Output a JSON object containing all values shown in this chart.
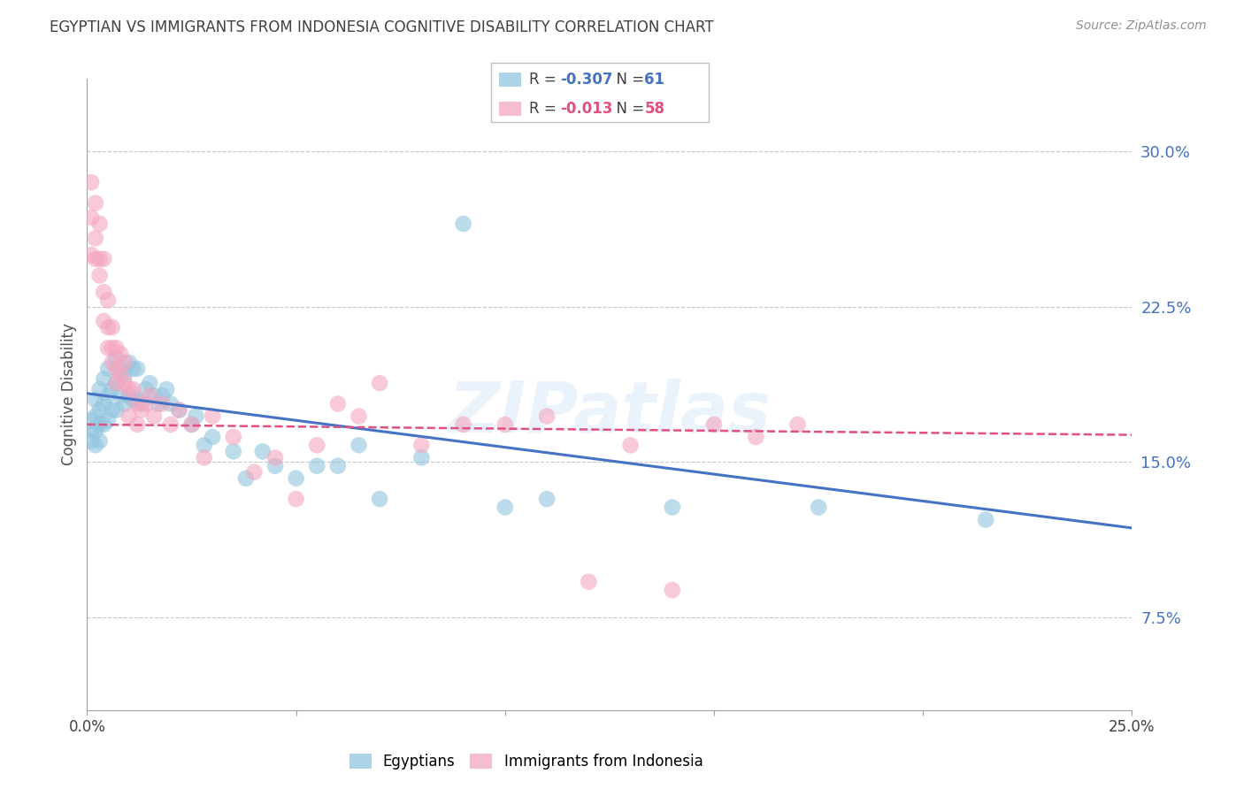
{
  "title": "EGYPTIAN VS IMMIGRANTS FROM INDONESIA COGNITIVE DISABILITY CORRELATION CHART",
  "source": "Source: ZipAtlas.com",
  "ylabel": "Cognitive Disability",
  "right_yticks": [
    "30.0%",
    "22.5%",
    "15.0%",
    "7.5%"
  ],
  "right_ytick_vals": [
    0.3,
    0.225,
    0.15,
    0.075
  ],
  "xlim": [
    0.0,
    0.25
  ],
  "ylim": [
    0.03,
    0.335
  ],
  "watermark": "ZIPatlas",
  "blue_color": "#92c5de",
  "pink_color": "#f4a6c0",
  "trendline_blue": "#4472c4",
  "trendline_pink": "#e05080",
  "grid_color": "#c8c8c8",
  "background_color": "#ffffff",
  "title_color": "#404040",
  "right_axis_color": "#4472c4",
  "blue_trend_x0": 0.0,
  "blue_trend_y0": 0.183,
  "blue_trend_x1": 0.25,
  "blue_trend_y1": 0.118,
  "pink_trend_x0": 0.0,
  "pink_trend_y0": 0.168,
  "pink_trend_x1": 0.25,
  "pink_trend_y1": 0.163,
  "egyptians_points_x": [
    0.001,
    0.001,
    0.001,
    0.002,
    0.002,
    0.002,
    0.002,
    0.003,
    0.003,
    0.003,
    0.003,
    0.004,
    0.004,
    0.004,
    0.005,
    0.005,
    0.005,
    0.006,
    0.006,
    0.007,
    0.007,
    0.007,
    0.008,
    0.008,
    0.009,
    0.009,
    0.01,
    0.01,
    0.011,
    0.011,
    0.012,
    0.012,
    0.013,
    0.014,
    0.015,
    0.016,
    0.017,
    0.018,
    0.019,
    0.02,
    0.022,
    0.025,
    0.026,
    0.028,
    0.03,
    0.035,
    0.038,
    0.042,
    0.045,
    0.05,
    0.055,
    0.06,
    0.065,
    0.07,
    0.08,
    0.09,
    0.1,
    0.11,
    0.14,
    0.175,
    0.215
  ],
  "egyptians_points_y": [
    0.17,
    0.165,
    0.16,
    0.18,
    0.172,
    0.165,
    0.158,
    0.185,
    0.175,
    0.168,
    0.16,
    0.19,
    0.178,
    0.168,
    0.195,
    0.182,
    0.17,
    0.185,
    0.175,
    0.2,
    0.188,
    0.175,
    0.195,
    0.182,
    0.192,
    0.178,
    0.198,
    0.182,
    0.195,
    0.18,
    0.195,
    0.18,
    0.178,
    0.185,
    0.188,
    0.182,
    0.178,
    0.182,
    0.185,
    0.178,
    0.175,
    0.168,
    0.172,
    0.158,
    0.162,
    0.155,
    0.142,
    0.155,
    0.148,
    0.142,
    0.148,
    0.148,
    0.158,
    0.132,
    0.152,
    0.265,
    0.128,
    0.132,
    0.128,
    0.128,
    0.122
  ],
  "indonesia_points_x": [
    0.001,
    0.001,
    0.001,
    0.002,
    0.002,
    0.002,
    0.003,
    0.003,
    0.003,
    0.004,
    0.004,
    0.004,
    0.005,
    0.005,
    0.005,
    0.006,
    0.006,
    0.006,
    0.007,
    0.007,
    0.007,
    0.008,
    0.008,
    0.009,
    0.009,
    0.01,
    0.01,
    0.011,
    0.012,
    0.012,
    0.013,
    0.014,
    0.015,
    0.016,
    0.018,
    0.02,
    0.022,
    0.025,
    0.028,
    0.03,
    0.035,
    0.04,
    0.045,
    0.05,
    0.055,
    0.06,
    0.065,
    0.07,
    0.08,
    0.09,
    0.1,
    0.11,
    0.12,
    0.13,
    0.14,
    0.15,
    0.16,
    0.17
  ],
  "indonesia_points_y": [
    0.285,
    0.268,
    0.25,
    0.275,
    0.258,
    0.248,
    0.265,
    0.248,
    0.24,
    0.248,
    0.232,
    0.218,
    0.228,
    0.215,
    0.205,
    0.215,
    0.205,
    0.198,
    0.205,
    0.195,
    0.188,
    0.202,
    0.192,
    0.198,
    0.188,
    0.185,
    0.172,
    0.185,
    0.178,
    0.168,
    0.175,
    0.178,
    0.182,
    0.172,
    0.178,
    0.168,
    0.175,
    0.168,
    0.152,
    0.172,
    0.162,
    0.145,
    0.152,
    0.132,
    0.158,
    0.178,
    0.172,
    0.188,
    0.158,
    0.168,
    0.168,
    0.172,
    0.092,
    0.158,
    0.088,
    0.168,
    0.162,
    0.168
  ]
}
